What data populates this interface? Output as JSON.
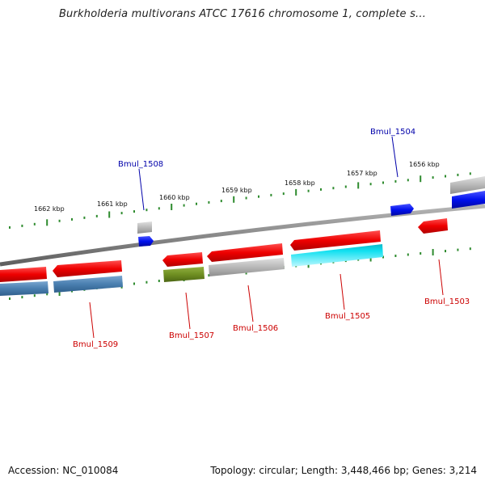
{
  "title": "Burkholderia multivorans ATCC 17616 chromosome 1, complete s...",
  "footer": {
    "accession": "Accession: NC_010084",
    "summary": "Topology: circular; Length: 3,448,466 bp; Genes: 3,214"
  },
  "colors": {
    "backbone": "#8a8a8a",
    "tick": "#2e8b2e",
    "label_blue": "#0000aa",
    "label_red": "#cc0000",
    "red": "#ee1111",
    "blue": "#0a14e6",
    "steelblue": "#4a7fb0",
    "grey": "#b8b8b8",
    "olive": "#6f8f22",
    "cyan": "#11e0f0"
  },
  "kbp_labels": [
    "1662 kbp",
    "1661 kbp",
    "1660 kbp",
    "1659 kbp",
    "1658 kbp",
    "1657 kbp",
    "1656 kbp"
  ],
  "gene_labels": [
    {
      "text": "Bmul_1508",
      "color": "blue"
    },
    {
      "text": "Bmul_1504",
      "color": "blue"
    },
    {
      "text": "Bmul_1509",
      "color": "red"
    },
    {
      "text": "Bmul_1507",
      "color": "red"
    },
    {
      "text": "Bmul_1506",
      "color": "red"
    },
    {
      "text": "Bmul_1505",
      "color": "red"
    },
    {
      "text": "Bmul_1503",
      "color": "red"
    }
  ]
}
